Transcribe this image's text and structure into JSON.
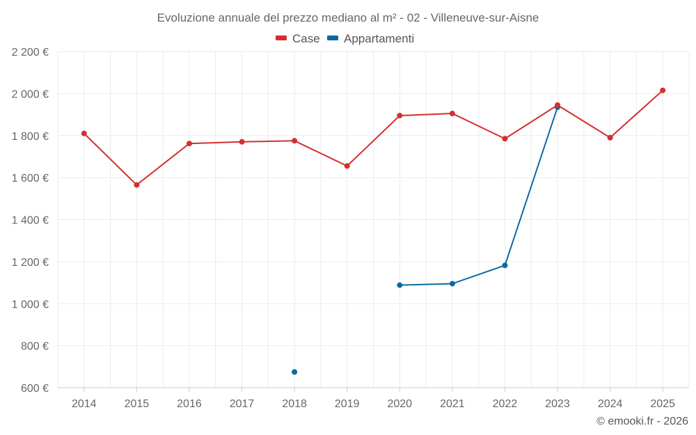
{
  "chart_data": {
    "type": "line",
    "title": "Evoluzione annuale del prezzo mediano al m² - 02 - Villeneuve-sur-Aisne",
    "categories": [
      "2014",
      "2015",
      "2016",
      "2017",
      "2018",
      "2019",
      "2020",
      "2021",
      "2022",
      "2023",
      "2024",
      "2025"
    ],
    "y_ticks": [
      "600 €",
      "800 €",
      "1 000 €",
      "1 200 €",
      "1 400 €",
      "1 600 €",
      "1 800 €",
      "2 000 €",
      "2 200 €"
    ],
    "y_tick_values": [
      600,
      800,
      1000,
      1200,
      1400,
      1600,
      1800,
      2000,
      2200
    ],
    "ylim": [
      600,
      2200
    ],
    "grid": true,
    "legend_position": "top-center",
    "series": [
      {
        "name": "Case",
        "color": "#d32f2f",
        "values": [
          1810,
          1565,
          1762,
          1770,
          1775,
          1655,
          1895,
          1905,
          1785,
          1945,
          1790,
          2015
        ]
      },
      {
        "name": "Appartamenti",
        "color": "#0b6aa2",
        "values": [
          null,
          null,
          null,
          null,
          675,
          null,
          1088,
          1095,
          1182,
          1935,
          null,
          null
        ]
      }
    ],
    "credit": "© emooki.fr - 2026"
  }
}
